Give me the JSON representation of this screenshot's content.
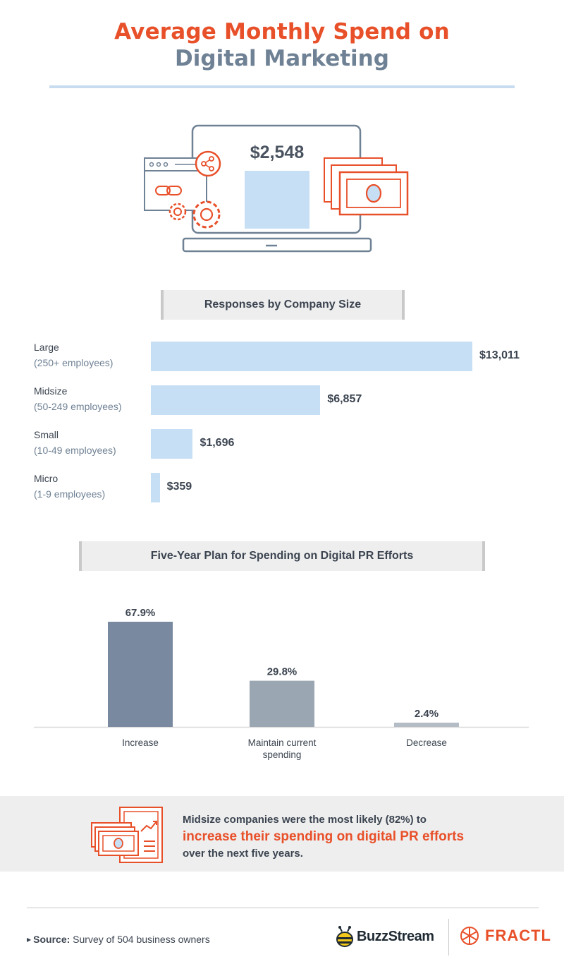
{
  "title": {
    "line1": "Average Monthly Spend on",
    "line2": "Digital Marketing"
  },
  "hero": {
    "value": "$2,548"
  },
  "section1": {
    "label": "Responses by Company Size"
  },
  "section2": {
    "label": "Five-Year Plan for Spending on Digital PR Efforts"
  },
  "chart_data": [
    {
      "type": "bar",
      "orientation": "horizontal",
      "title": "Responses by Company Size",
      "categories": [
        "Large",
        "Midsize",
        "Small",
        "Micro"
      ],
      "category_sublabels": [
        "(250+ employees)",
        "(50-249 employees)",
        "(10-49 employees)",
        "(1-9 employees)"
      ],
      "values": [
        13011,
        6857,
        1696,
        359
      ],
      "value_labels": [
        "$13,011",
        "$6,857",
        "$1,696",
        "$359"
      ],
      "color": "#c7dff4"
    },
    {
      "type": "bar",
      "orientation": "vertical",
      "title": "Five-Year Plan for Spending on Digital PR Efforts",
      "categories": [
        "Increase",
        "Maintain current spending",
        "Decrease"
      ],
      "category_label_lines": [
        [
          "Increase"
        ],
        [
          "Maintain current",
          "spending"
        ],
        [
          "Decrease"
        ]
      ],
      "values": [
        67.9,
        29.8,
        2.4
      ],
      "value_labels": [
        "67.9%",
        "29.8%",
        "2.4%"
      ],
      "colors": [
        "#7889a0",
        "#9aa6b2",
        "#b4bdc6"
      ]
    }
  ],
  "callout": {
    "line1": "Midsize companies were the most likely (82%) to",
    "highlight": "increase their spending on digital PR efforts",
    "line3": "over the next five years."
  },
  "footer": {
    "source_label": "Source:",
    "source_text": "Survey of 504 business owners",
    "brand1": "BuzzStream",
    "brand2": "FRACTL"
  },
  "colors": {
    "accent": "#e8502a",
    "slate": "#6f8194",
    "light_blue": "#c7dff4"
  }
}
